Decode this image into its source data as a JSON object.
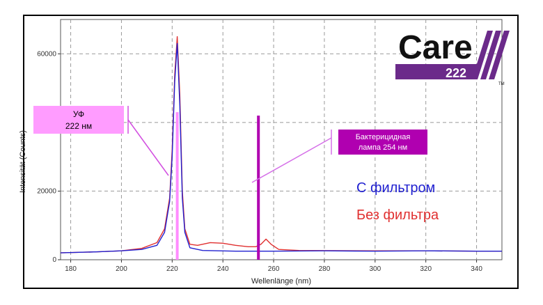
{
  "chart_data": {
    "type": "line",
    "xlabel": "Wellenlänge (nm)",
    "ylabel": "Intensität (Counts)",
    "xlim": [
      176,
      350
    ],
    "ylim": [
      0,
      70000
    ],
    "x_ticks": [
      180,
      200,
      220,
      240,
      260,
      280,
      300,
      320,
      340
    ],
    "y_ticks": [
      0,
      20000,
      40000,
      60000
    ],
    "y_tick_labels": [
      "0",
      "20000",
      "",
      "60000"
    ],
    "grid": true,
    "legend_position": "right",
    "series": [
      {
        "name": "С фильтром",
        "color": "#2020d0",
        "points": [
          [
            176,
            2000
          ],
          [
            190,
            2300
          ],
          [
            200,
            2600
          ],
          [
            208,
            3000
          ],
          [
            214,
            4200
          ],
          [
            217,
            8000
          ],
          [
            219,
            17000
          ],
          [
            220,
            30000
          ],
          [
            221,
            52000
          ],
          [
            222,
            63000
          ],
          [
            223,
            45000
          ],
          [
            224,
            18000
          ],
          [
            225,
            8000
          ],
          [
            227,
            3500
          ],
          [
            232,
            2700
          ],
          [
            245,
            2500
          ],
          [
            260,
            2500
          ],
          [
            280,
            2600
          ],
          [
            300,
            2500
          ],
          [
            320,
            2600
          ],
          [
            340,
            2500
          ],
          [
            350,
            2500
          ]
        ]
      },
      {
        "name": "Без фильтра",
        "color": "#e03030",
        "points": [
          [
            176,
            2000
          ],
          [
            190,
            2300
          ],
          [
            200,
            2600
          ],
          [
            208,
            3300
          ],
          [
            214,
            5000
          ],
          [
            217,
            9000
          ],
          [
            219,
            18000
          ],
          [
            220,
            32000
          ],
          [
            221,
            54000
          ],
          [
            222,
            65000
          ],
          [
            223,
            48000
          ],
          [
            224,
            20000
          ],
          [
            225,
            9000
          ],
          [
            227,
            4500
          ],
          [
            230,
            4200
          ],
          [
            235,
            5000
          ],
          [
            240,
            4800
          ],
          [
            245,
            4200
          ],
          [
            250,
            3800
          ],
          [
            253,
            3800
          ],
          [
            255,
            4500
          ],
          [
            257,
            6000
          ],
          [
            259,
            4500
          ],
          [
            262,
            3000
          ],
          [
            270,
            2700
          ],
          [
            300,
            2600
          ],
          [
            320,
            2600
          ],
          [
            340,
            2500
          ],
          [
            350,
            2500
          ]
        ]
      }
    ],
    "markers": [
      {
        "label": "УФ\n222 нм",
        "x": 222,
        "ymax": 43000,
        "color": "#ff8cff"
      },
      {
        "label": "Бактерицидная\nлампа 254 нм",
        "x": 254,
        "ymax": 42000,
        "color": "#b000b0"
      }
    ]
  },
  "legend": {
    "with_filter": "С фильтром",
    "without_filter": "Без фильтра"
  },
  "labels": {
    "uv_line1": "УФ",
    "uv_line2": "222 нм",
    "lamp_line1": "Бактерицидная",
    "lamp_line2": "лампа 254 нм"
  },
  "logo": {
    "word": "Care",
    "number": "222",
    "tm": "TM"
  },
  "colors": {
    "blue": "#2020d0",
    "red": "#e03030",
    "uv_pink": "#ff8cff",
    "lamp_purple": "#b000b0",
    "logo_purple": "#6b2a8a"
  }
}
